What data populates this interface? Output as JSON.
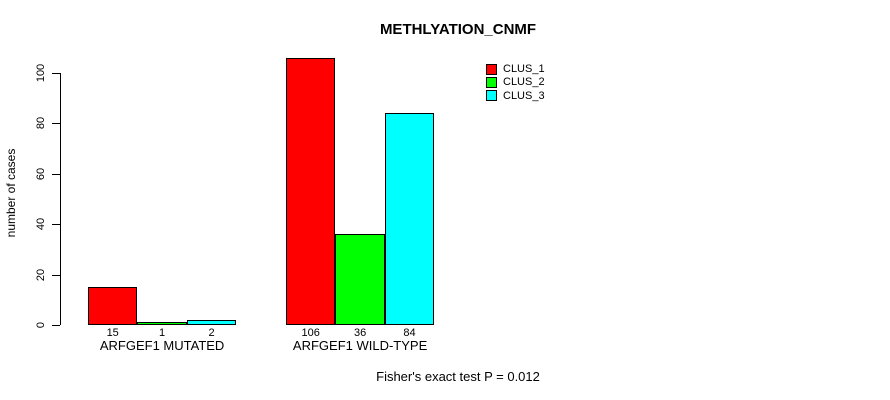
{
  "chart_data": {
    "type": "bar",
    "title": "METHLYATION_CNMF",
    "xlabel": "",
    "ylabel": "number of cases",
    "ylim": [
      0,
      100
    ],
    "yticks": [
      0,
      20,
      40,
      60,
      80,
      100
    ],
    "grid": false,
    "legend_position": "top-right",
    "categories": [
      "ARFGEF1 MUTATED",
      "ARFGEF1 WILD-TYPE"
    ],
    "series": [
      {
        "name": "CLUS_1",
        "color": "#ff0000",
        "values": [
          15,
          106
        ]
      },
      {
        "name": "CLUS_2",
        "color": "#00ff00",
        "values": [
          1,
          36
        ]
      },
      {
        "name": "CLUS_3",
        "color": "#00ffff",
        "values": [
          2,
          84
        ]
      }
    ],
    "bar_value_labels": [
      [
        "15",
        "1",
        "2"
      ],
      [
        "106",
        "36",
        "84"
      ]
    ],
    "annotation": "Fisher's exact test P = 0.012"
  }
}
